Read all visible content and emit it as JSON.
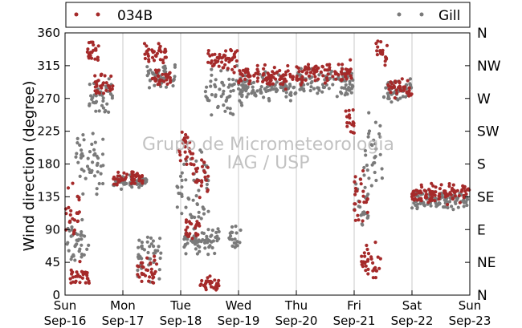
{
  "chart_data": {
    "type": "scatter",
    "ylabel": "Wind direction (degree)",
    "xlabel": "",
    "ylim": [
      0,
      360
    ],
    "xlim": [
      "2012-09-16",
      "2012-09-23"
    ],
    "yticks": [
      0,
      45,
      90,
      135,
      180,
      225,
      270,
      315,
      360
    ],
    "x_ticks": [
      {
        "date": "2012-09-16",
        "day": "Sun",
        "label": "Sep-16"
      },
      {
        "date": "2012-09-17",
        "day": "Mon",
        "label": "Sep-17"
      },
      {
        "date": "2012-09-18",
        "day": "Tue",
        "label": "Sep-18"
      },
      {
        "date": "2012-09-19",
        "day": "Wed",
        "label": "Sep-19"
      },
      {
        "date": "2012-09-20",
        "day": "Thu",
        "label": "Sep-20"
      },
      {
        "date": "2012-09-21",
        "day": "Fri",
        "label": "Sep-21"
      },
      {
        "date": "2012-09-22",
        "day": "Sat",
        "label": "Sep-22"
      },
      {
        "date": "2012-09-23",
        "day": "Sun",
        "label": "Sep-23"
      }
    ],
    "compass_ticks": [
      {
        "value": 0,
        "label": "N"
      },
      {
        "value": 45,
        "label": "NE"
      },
      {
        "value": 90,
        "label": "E"
      },
      {
        "value": 135,
        "label": "SE"
      },
      {
        "value": 180,
        "label": "S"
      },
      {
        "value": 225,
        "label": "SW"
      },
      {
        "value": 270,
        "label": "W"
      },
      {
        "value": 315,
        "label": "NW"
      },
      {
        "value": 360,
        "label": "N"
      }
    ],
    "grid": "vertical at day boundaries",
    "legend_placement": "top, outside",
    "series": [
      {
        "name": "034B",
        "color": "#a52a2a",
        "clusters": [
          {
            "x_start": "2012-09-16T00:00",
            "x_end": "2012-09-16T06:00",
            "y_center": 110,
            "y_spread": 50
          },
          {
            "x_start": "2012-09-16T02:00",
            "x_end": "2012-09-16T10:00",
            "y_center": 25,
            "y_spread": 25
          },
          {
            "x_start": "2012-09-16T09:00",
            "x_end": "2012-09-16T14:00",
            "y_center": 335,
            "y_spread": 25
          },
          {
            "x_start": "2012-09-16T12:00",
            "x_end": "2012-09-16T20:00",
            "y_center": 290,
            "y_spread": 25
          },
          {
            "x_start": "2012-09-16T20:00",
            "x_end": "2012-09-17T09:00",
            "y_center": 160,
            "y_spread": 12
          },
          {
            "x_start": "2012-09-17T06:00",
            "x_end": "2012-09-17T14:00",
            "y_center": 35,
            "y_spread": 30
          },
          {
            "x_start": "2012-09-17T09:00",
            "x_end": "2012-09-17T18:00",
            "y_center": 335,
            "y_spread": 25
          },
          {
            "x_start": "2012-09-17T12:00",
            "x_end": "2012-09-17T20:00",
            "y_center": 300,
            "y_spread": 20
          },
          {
            "x_start": "2012-09-17T23:00",
            "x_end": "2012-09-18T06:00",
            "y_center": 195,
            "y_spread": 40
          },
          {
            "x_start": "2012-09-18T02:00",
            "x_end": "2012-09-18T08:00",
            "y_center": 90,
            "y_spread": 30
          },
          {
            "x_start": "2012-09-18T06:00",
            "x_end": "2012-09-18T12:00",
            "y_center": 160,
            "y_spread": 40
          },
          {
            "x_start": "2012-09-18T08:00",
            "x_end": "2012-09-18T16:00",
            "y_center": 15,
            "y_spread": 15
          },
          {
            "x_start": "2012-09-18T11:00",
            "x_end": "2012-09-19T00:00",
            "y_center": 325,
            "y_spread": 25
          },
          {
            "x_start": "2012-09-19T00:00",
            "x_end": "2012-09-19T23:00",
            "y_center": 300,
            "y_spread": 20
          },
          {
            "x_start": "2012-09-20T00:00",
            "x_end": "2012-09-20T23:00",
            "y_center": 305,
            "y_spread": 22
          },
          {
            "x_start": "2012-09-20T20:00",
            "x_end": "2012-09-21T00:00",
            "y_center": 240,
            "y_spread": 30
          },
          {
            "x_start": "2012-09-21T00:00",
            "x_end": "2012-09-21T06:00",
            "y_center": 135,
            "y_spread": 45
          },
          {
            "x_start": "2012-09-21T03:00",
            "x_end": "2012-09-21T11:00",
            "y_center": 45,
            "y_spread": 35
          },
          {
            "x_start": "2012-09-21T09:00",
            "x_end": "2012-09-21T14:00",
            "y_center": 330,
            "y_spread": 25
          },
          {
            "x_start": "2012-09-21T14:00",
            "x_end": "2012-09-22T00:00",
            "y_center": 285,
            "y_spread": 20
          },
          {
            "x_start": "2012-09-22T00:00",
            "x_end": "2012-09-23T00:00",
            "y_center": 140,
            "y_spread": 18
          }
        ]
      },
      {
        "name": "Gill",
        "color": "#7a7a7a",
        "clusters": [
          {
            "x_start": "2012-09-16T00:00",
            "x_end": "2012-09-16T10:00",
            "y_center": 70,
            "y_spread": 45
          },
          {
            "x_start": "2012-09-16T04:00",
            "x_end": "2012-09-16T16:00",
            "y_center": 180,
            "y_spread": 60
          },
          {
            "x_start": "2012-09-16T10:00",
            "x_end": "2012-09-16T20:00",
            "y_center": 275,
            "y_spread": 35
          },
          {
            "x_start": "2012-09-16T20:00",
            "x_end": "2012-09-17T10:00",
            "y_center": 155,
            "y_spread": 12
          },
          {
            "x_start": "2012-09-17T06:00",
            "x_end": "2012-09-17T16:00",
            "y_center": 60,
            "y_spread": 50
          },
          {
            "x_start": "2012-09-17T10:00",
            "x_end": "2012-09-17T22:00",
            "y_center": 300,
            "y_spread": 25
          },
          {
            "x_start": "2012-09-17T22:00",
            "x_end": "2012-09-18T12:00",
            "y_center": 150,
            "y_spread": 80
          },
          {
            "x_start": "2012-09-18T00:00",
            "x_end": "2012-09-18T16:00",
            "y_center": 75,
            "y_spread": 25
          },
          {
            "x_start": "2012-09-18T10:00",
            "x_end": "2012-09-19T02:00",
            "y_center": 280,
            "y_spread": 45
          },
          {
            "x_start": "2012-09-18T20:00",
            "x_end": "2012-09-19T01:00",
            "y_center": 75,
            "y_spread": 25
          },
          {
            "x_start": "2012-09-19T00:00",
            "x_end": "2012-09-20T00:00",
            "y_center": 285,
            "y_spread": 25
          },
          {
            "x_start": "2012-09-20T00:00",
            "x_end": "2012-09-21T00:00",
            "y_center": 290,
            "y_spread": 28
          },
          {
            "x_start": "2012-09-21T00:00",
            "x_end": "2012-09-21T06:00",
            "y_center": 120,
            "y_spread": 60
          },
          {
            "x_start": "2012-09-21T04:00",
            "x_end": "2012-09-21T12:00",
            "y_center": 190,
            "y_spread": 90
          },
          {
            "x_start": "2012-09-21T12:00",
            "x_end": "2012-09-22T00:00",
            "y_center": 280,
            "y_spread": 25
          },
          {
            "x_start": "2012-09-22T00:00",
            "x_end": "2012-09-23T00:00",
            "y_center": 130,
            "y_spread": 18
          }
        ]
      }
    ]
  },
  "watermark": {
    "line1": "Grupo de Micrometeorologia",
    "line2": "IAG / USP"
  }
}
